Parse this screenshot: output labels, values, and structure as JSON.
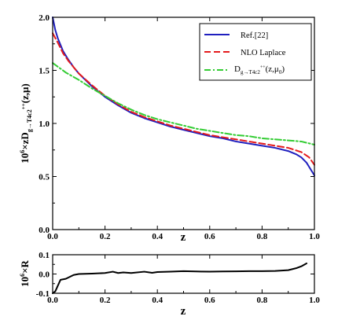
{
  "chart_data": [
    {
      "type": "line",
      "title": "",
      "xlabel": "z",
      "ylabel": "10^6×zD_{g→T4c2^{++}}(z,μ)",
      "ylabel_parts": {
        "prefix": "10",
        "exp": "6",
        "mid": "×zD",
        "sub": "g→T4c2",
        "subsup": "++",
        "suffix": "(z,μ)"
      },
      "xlim": [
        0.0,
        1.0
      ],
      "ylim": [
        0.0,
        2.0
      ],
      "xticks": [
        "0.0",
        "0.2",
        "0.4",
        "0.6",
        "0.8",
        "1.0"
      ],
      "yticks": [
        "0.0",
        "0.5",
        "1.0",
        "1.5",
        "2.0"
      ],
      "legend_position": "top-right",
      "series": [
        {
          "name": "Ref.[22]",
          "color": "#1f1fbf",
          "style": "solid",
          "x": [
            0.0,
            0.01,
            0.02,
            0.04,
            0.06,
            0.08,
            0.1,
            0.15,
            0.2,
            0.25,
            0.3,
            0.35,
            0.4,
            0.45,
            0.5,
            0.55,
            0.6,
            0.65,
            0.7,
            0.75,
            0.8,
            0.85,
            0.9,
            0.93,
            0.95,
            0.97,
            0.98,
            0.99,
            1.0
          ],
          "y": [
            2.0,
            1.88,
            1.8,
            1.68,
            1.6,
            1.53,
            1.47,
            1.35,
            1.25,
            1.17,
            1.1,
            1.05,
            1.01,
            0.97,
            0.94,
            0.91,
            0.88,
            0.86,
            0.83,
            0.81,
            0.79,
            0.77,
            0.74,
            0.71,
            0.68,
            0.63,
            0.59,
            0.55,
            0.51
          ]
        },
        {
          "name": "NLO Laplace",
          "color": "#e41a1c",
          "style": "dashed",
          "x": [
            0.0,
            0.02,
            0.04,
            0.06,
            0.08,
            0.1,
            0.15,
            0.2,
            0.25,
            0.3,
            0.35,
            0.4,
            0.45,
            0.5,
            0.55,
            0.6,
            0.65,
            0.7,
            0.75,
            0.8,
            0.85,
            0.9,
            0.95,
            0.98,
            1.0
          ],
          "y": [
            1.85,
            1.76,
            1.66,
            1.59,
            1.53,
            1.47,
            1.36,
            1.26,
            1.18,
            1.11,
            1.06,
            1.02,
            0.98,
            0.95,
            0.92,
            0.89,
            0.87,
            0.85,
            0.83,
            0.81,
            0.79,
            0.77,
            0.73,
            0.68,
            0.61
          ]
        },
        {
          "name_parts": {
            "base": "D",
            "sub": "g→T4c2",
            "subsup": "++",
            "suffix": "(z,μ",
            "suffix_sub": "0",
            "suffix_end": ")"
          },
          "color": "#33cc33",
          "style": "dashdot",
          "x": [
            0.0,
            0.05,
            0.1,
            0.15,
            0.2,
            0.25,
            0.3,
            0.35,
            0.4,
            0.45,
            0.5,
            0.55,
            0.6,
            0.65,
            0.7,
            0.75,
            0.8,
            0.85,
            0.9,
            0.95,
            1.0
          ],
          "y": [
            1.57,
            1.48,
            1.41,
            1.33,
            1.26,
            1.19,
            1.13,
            1.08,
            1.04,
            1.01,
            0.98,
            0.95,
            0.93,
            0.91,
            0.89,
            0.88,
            0.86,
            0.85,
            0.84,
            0.83,
            0.8
          ]
        }
      ]
    },
    {
      "type": "line",
      "title": "",
      "xlabel": "z",
      "ylabel": "10^6×R",
      "ylabel_parts": {
        "prefix": "10",
        "exp": "6",
        "suffix": "×R"
      },
      "xlim": [
        0.0,
        1.0
      ],
      "ylim": [
        -0.1,
        0.1
      ],
      "xticks": [
        "0.0",
        "0.2",
        "0.4",
        "0.6",
        "0.8",
        "1.0"
      ],
      "yticks": [
        "-0.1",
        "0.0",
        "0.1"
      ],
      "series": [
        {
          "color": "#000000",
          "style": "solid",
          "x": [
            0.0,
            0.01,
            0.02,
            0.03,
            0.05,
            0.08,
            0.1,
            0.15,
            0.2,
            0.23,
            0.25,
            0.27,
            0.3,
            0.35,
            0.38,
            0.4,
            0.45,
            0.5,
            0.55,
            0.6,
            0.65,
            0.7,
            0.75,
            0.8,
            0.85,
            0.9,
            0.93,
            0.95,
            0.97
          ],
          "y": [
            -0.1,
            -0.09,
            -0.06,
            -0.03,
            -0.025,
            -0.005,
            0.0,
            0.002,
            0.005,
            0.012,
            0.005,
            0.008,
            0.005,
            0.012,
            0.006,
            0.01,
            0.012,
            0.015,
            0.013,
            0.012,
            0.013,
            0.014,
            0.015,
            0.015,
            0.016,
            0.02,
            0.03,
            0.04,
            0.055
          ]
        }
      ]
    }
  ]
}
